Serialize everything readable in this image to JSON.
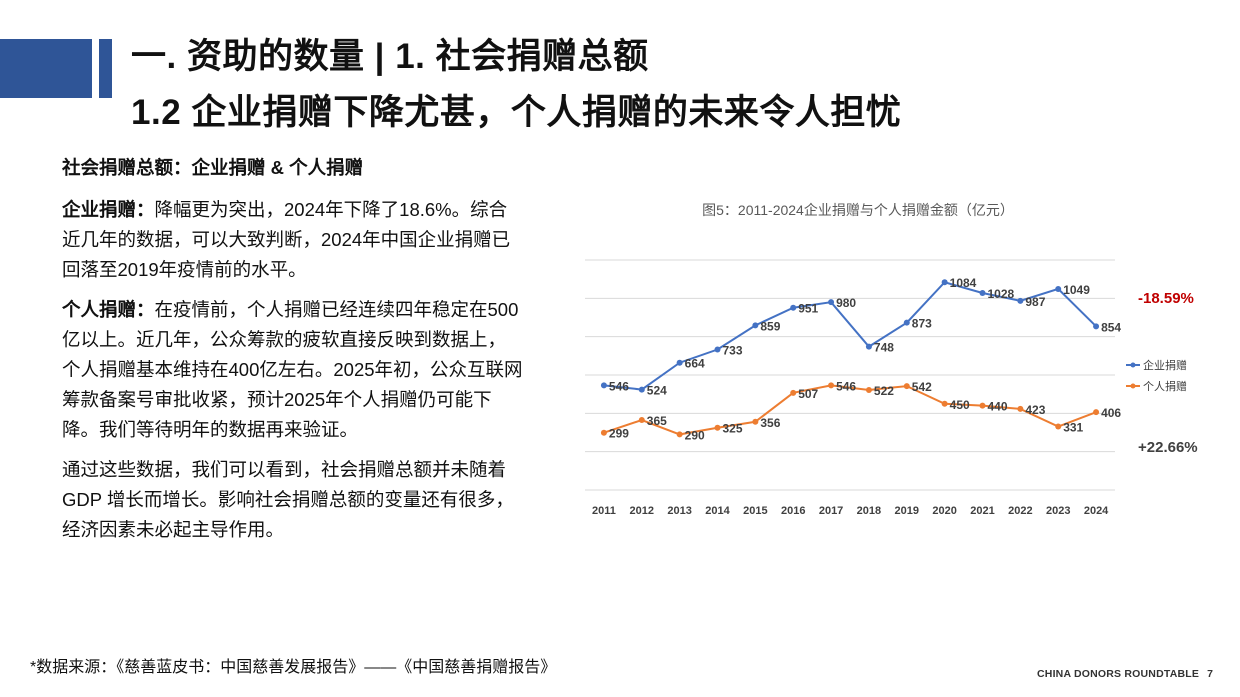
{
  "header": {
    "title": "一. 资助的数量 | 1. 社会捐赠总额",
    "subtitle": "1.2 企业捐赠下降尤甚，个人捐赠的未来令人担忧"
  },
  "body": {
    "section_heading": "社会捐赠总额：企业捐赠 & 个人捐赠",
    "para1_label": "企业捐赠：",
    "para1_text": "降幅更为突出，2024年下降了18.6%。综合近几年的数据，可以大致判断，2024年中国企业捐赠已回落至2019年疫情前的水平。",
    "para2_label": "个人捐赠：",
    "para2_text": "在疫情前，个人捐赠已经连续四年稳定在500亿以上。近几年，公众筹款的疲软直接反映到数据上，个人捐赠基本维持在400亿左右。2025年初，公众互联网筹款备案号审批收紧，预计2025年个人捐赠仍可能下降。我们等待明年的数据再来验证。",
    "para3_text": "通过这些数据，我们可以看到，社会捐赠总额并未随着 GDP 增长而增长。影响社会捐赠总额的变量还有很多，经济因素未必起主导作用。"
  },
  "source_note": "*数据来源：《慈善蓝皮书：中国慈善发展报告》——《中国慈善捐赠报告》",
  "footer": {
    "org": "CHINA DONORS ROUNDTABLE",
    "page": "7"
  },
  "chart_data": {
    "type": "line",
    "title": "图5：2011-2024企业捐赠与个人捐赠金额（亿元）",
    "categories": [
      "2011",
      "2012",
      "2013",
      "2014",
      "2015",
      "2016",
      "2017",
      "2018",
      "2019",
      "2020",
      "2021",
      "2022",
      "2023",
      "2024"
    ],
    "series": [
      {
        "name": "企业捐赠",
        "color": "#4472c4",
        "values": [
          546,
          524,
          664,
          733,
          859,
          951,
          980,
          748,
          873,
          1084,
          1028,
          987,
          1049,
          854
        ]
      },
      {
        "name": "个人捐赠",
        "color": "#ed7d31",
        "values": [
          299,
          365,
          290,
          325,
          356,
          507,
          546,
          522,
          542,
          450,
          440,
          423,
          331,
          406
        ]
      }
    ],
    "ylim": [
      0,
      1200
    ],
    "grid": true,
    "legend": "right",
    "annotations": [
      {
        "text": "-18.59%",
        "color": "#c00000",
        "series": "企业捐赠"
      },
      {
        "text": "+22.66%",
        "color": "#404040",
        "series": "个人捐赠"
      }
    ]
  }
}
